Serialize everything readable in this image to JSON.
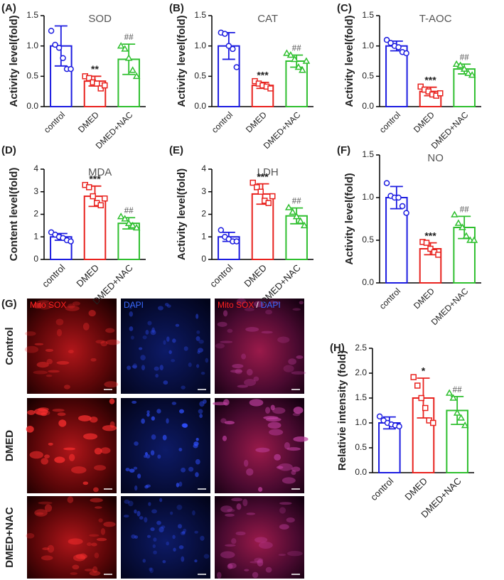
{
  "chart_data": [
    {
      "type": "bar",
      "panel": "(A)",
      "title": "SOD",
      "ylabel": "Activity level(fold)",
      "categories": [
        "control",
        "DMED",
        "DMED+NAC"
      ],
      "colors": [
        "#1c1ce0",
        "#e8221e",
        "#2fbf2f"
      ],
      "markers": [
        "circle",
        "square",
        "triangle"
      ],
      "values": [
        1.0,
        0.42,
        0.78
      ],
      "errors": [
        0.33,
        0.08,
        0.25
      ],
      "points": [
        [
          1.25,
          1.02,
          0.97,
          0.8,
          0.62,
          0.62
        ],
        [
          0.5,
          0.47,
          0.4,
          0.38,
          0.3,
          0.35
        ],
        [
          1.0,
          0.95,
          0.8,
          0.6,
          0.5
        ]
      ],
      "annotations": [
        null,
        "**",
        "##"
      ],
      "ylim": [
        0,
        1.5
      ],
      "yticks": [
        {
          "value": 0,
          "label": "0.0"
        },
        0.5,
        {
          "value": 1,
          "label": "1.0"
        },
        1.5
      ]
    },
    {
      "type": "bar",
      "panel": "(B)",
      "title": "CAT",
      "ylabel": "Activity level(fold)",
      "categories": [
        "control",
        "DMED",
        "DMED+NAC"
      ],
      "colors": [
        "#1c1ce0",
        "#e8221e",
        "#2fbf2f"
      ],
      "markers": [
        "circle",
        "square",
        "triangle"
      ],
      "values": [
        1.0,
        0.35,
        0.75
      ],
      "errors": [
        0.22,
        0.05,
        0.1
      ],
      "points": [
        [
          1.22,
          1.2,
          1.0,
          0.95,
          0.65
        ],
        [
          0.42,
          0.38,
          0.35,
          0.33,
          0.3
        ],
        [
          0.88,
          0.85,
          0.78,
          0.65,
          0.6,
          0.75
        ]
      ],
      "annotations": [
        null,
        "***",
        "##"
      ],
      "ylim": [
        0,
        1.5
      ],
      "yticks": [
        {
          "value": 0,
          "label": "0.0"
        },
        0.5,
        {
          "value": 1,
          "label": "1.0"
        },
        1.5
      ]
    },
    {
      "type": "bar",
      "panel": "(C)",
      "title": "T-AOC",
      "ylabel": "Activity level(fold)",
      "categories": [
        "control",
        "DMED",
        "DMED+NAC"
      ],
      "colors": [
        "#1c1ce0",
        "#e8221e",
        "#2fbf2f"
      ],
      "markers": [
        "circle",
        "square",
        "triangle"
      ],
      "values": [
        1.0,
        0.25,
        0.62
      ],
      "errors": [
        0.08,
        0.07,
        0.08
      ],
      "points": [
        [
          1.1,
          1.05,
          1.0,
          0.98,
          0.9,
          0.88
        ],
        [
          0.33,
          0.28,
          0.25,
          0.2,
          0.18,
          0.22
        ],
        [
          0.7,
          0.68,
          0.62,
          0.55,
          0.52
        ]
      ],
      "annotations": [
        null,
        "***",
        "##"
      ],
      "ylim": [
        0,
        1.5
      ],
      "yticks": [
        {
          "value": 0,
          "label": "0.0"
        },
        0.5,
        {
          "value": 1,
          "label": "1.0"
        },
        1.5
      ]
    },
    {
      "type": "bar",
      "panel": "(D)",
      "title": "MDA",
      "ylabel": "Content level(fold)",
      "categories": [
        "control",
        "DMED",
        "DMED+NAC"
      ],
      "colors": [
        "#1c1ce0",
        "#e8221e",
        "#2fbf2f"
      ],
      "markers": [
        "circle",
        "square",
        "triangle"
      ],
      "values": [
        1.0,
        2.8,
        1.6
      ],
      "errors": [
        0.15,
        0.45,
        0.25
      ],
      "points": [
        [
          1.2,
          1.1,
          1.0,
          0.95,
          0.85,
          0.8
        ],
        [
          3.3,
          3.2,
          2.8,
          2.5,
          2.4,
          2.7
        ],
        [
          1.9,
          1.8,
          1.6,
          1.5,
          1.4
        ]
      ],
      "annotations": [
        null,
        "***",
        "##"
      ],
      "ylim": [
        0,
        4
      ],
      "yticks": [
        0,
        1,
        2,
        3,
        4
      ]
    },
    {
      "type": "bar",
      "panel": "(E)",
      "title": "LDH",
      "ylabel": "Activity level(fold)",
      "categories": [
        "control",
        "DMED",
        "DMED+NAC"
      ],
      "colors": [
        "#1c1ce0",
        "#e8221e",
        "#2fbf2f"
      ],
      "markers": [
        "circle",
        "square",
        "triangle"
      ],
      "values": [
        1.0,
        2.9,
        1.93
      ],
      "errors": [
        0.2,
        0.45,
        0.35
      ],
      "points": [
        [
          1.3,
          1.0,
          0.9,
          0.8,
          0.8
        ],
        [
          3.4,
          3.2,
          3.0,
          2.6,
          2.5,
          2.8
        ],
        [
          2.3,
          2.1,
          1.9,
          1.7,
          1.5
        ]
      ],
      "annotations": [
        null,
        "***",
        "##"
      ],
      "ylim": [
        0,
        4
      ],
      "yticks": [
        0,
        1,
        2,
        3,
        4
      ]
    },
    {
      "type": "bar",
      "panel": "(F)",
      "title": "NO",
      "ylabel": "Activity level(fold)",
      "categories": [
        "control",
        "DMED",
        "DMED+NAC"
      ],
      "colors": [
        "#1c1ce0",
        "#e8221e",
        "#2fbf2f"
      ],
      "markers": [
        "circle",
        "square",
        "triangle"
      ],
      "values": [
        1.0,
        0.4,
        0.65
      ],
      "errors": [
        0.13,
        0.07,
        0.13
      ],
      "points": [
        [
          1.17,
          1.02,
          1.0,
          1.0,
          0.9,
          0.82
        ],
        [
          0.48,
          0.47,
          0.4,
          0.36,
          0.33
        ],
        [
          0.8,
          0.7,
          0.65,
          0.55,
          0.5,
          0.5
        ]
      ],
      "annotations": [
        null,
        "***",
        "##"
      ],
      "ylim": [
        0,
        1.5
      ],
      "yticks": [
        {
          "value": 0,
          "label": "0.0"
        },
        0.5,
        {
          "value": 1,
          "label": "1.0"
        },
        1.5
      ]
    },
    {
      "type": "bar",
      "panel": "(H)",
      "title": null,
      "ylabel": "Relativie intensity (fold)",
      "categories": [
        "control",
        "DMED",
        "DMED+NAC"
      ],
      "colors": [
        "#1c1ce0",
        "#e8221e",
        "#2fbf2f"
      ],
      "markers": [
        "circle",
        "square",
        "triangle"
      ],
      "values": [
        1.0,
        1.5,
        1.25
      ],
      "errors": [
        0.12,
        0.4,
        0.28
      ],
      "points": [
        [
          1.13,
          1.05,
          1.0,
          0.97,
          0.95,
          0.93
        ],
        [
          1.92,
          1.75,
          1.5,
          1.3,
          1.05,
          1.0
        ],
        [
          1.6,
          1.5,
          1.2,
          1.1,
          0.95
        ]
      ],
      "annotations": [
        null,
        "*",
        "##"
      ],
      "ylim": [
        0,
        2.5
      ],
      "yticks": [
        {
          "value": 0,
          "label": "0.0"
        },
        0.5,
        {
          "value": 1,
          "label": "1.0"
        },
        1.5,
        {
          "value": 2,
          "label": "2.0"
        },
        2.5
      ]
    }
  ],
  "image_panel": {
    "panel": "(G)",
    "row_labels": [
      "Control",
      "DMED",
      "DMED+NAC"
    ],
    "column_labels": [
      "Mito SOX",
      "DAPI"
    ],
    "merge_label": [
      "Mito SOX",
      "/",
      "DAPI"
    ]
  }
}
